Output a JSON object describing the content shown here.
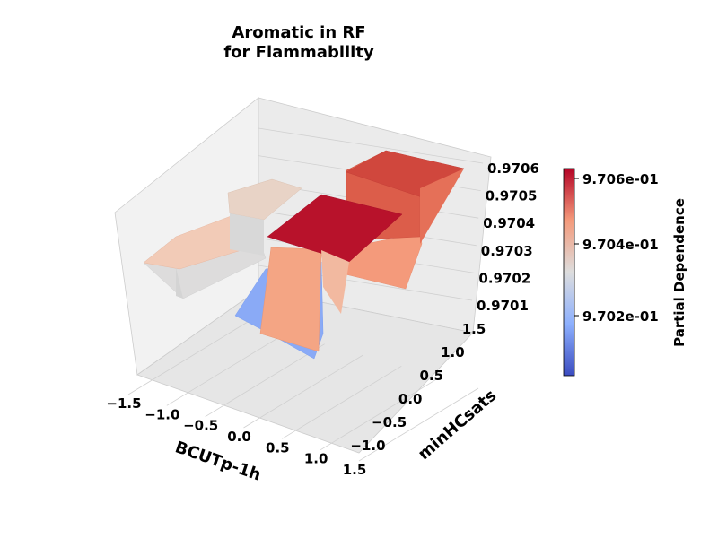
{
  "chart_data": {
    "type": "surface3d",
    "title_line1": "Aromatic in RF",
    "title_line2": "for Flammability",
    "xlabel": "BCUTp-1h",
    "ylabel": "minHCsats",
    "colorbar_label": "Partial Dependence",
    "x_ticks": [
      "−1.5",
      "−1.0",
      "−0.5",
      "0.0",
      "0.5",
      "1.0",
      "1.5"
    ],
    "y_ticks": [
      "−1.0",
      "−0.5",
      "0.0",
      "0.5",
      "1.0",
      "1.5"
    ],
    "z_ticks": [
      "0.9701",
      "0.9702",
      "0.9703",
      "0.9704",
      "0.9705",
      "0.9706"
    ],
    "colorbar_ticks": [
      "9.702e-01",
      "9.704e-01",
      "9.706e-01"
    ],
    "xlim": [
      -1.7,
      1.7
    ],
    "ylim": [
      -1.2,
      1.7
    ],
    "zlim": [
      0.97005,
      0.97065
    ],
    "colormap": "coolwarm",
    "regions": [
      {
        "x": [
          -1.7,
          -0.35
        ],
        "y": [
          -1.2,
          0.15
        ],
        "z": 0.97034
      },
      {
        "x": [
          -1.7,
          -0.35
        ],
        "y": [
          0.15,
          1.7
        ],
        "z": 0.97037
      },
      {
        "x": [
          -0.35,
          0.35
        ],
        "y": [
          -1.2,
          0.15
        ],
        "z": 0.97018
      },
      {
        "x": [
          -0.35,
          0.35
        ],
        "y": [
          0.15,
          1.7
        ],
        "z": 0.97014
      },
      {
        "x": [
          0.35,
          1.7
        ],
        "y": [
          -1.2,
          0.15
        ],
        "z": 0.97037
      },
      {
        "x": [
          0.35,
          1.7
        ],
        "y": [
          0.15,
          1.7
        ],
        "z": 0.97063
      },
      {
        "x": [
          -0.1,
          1.7
        ],
        "y": [
          -0.6,
          0.45
        ],
        "z": 0.97062
      }
    ]
  }
}
